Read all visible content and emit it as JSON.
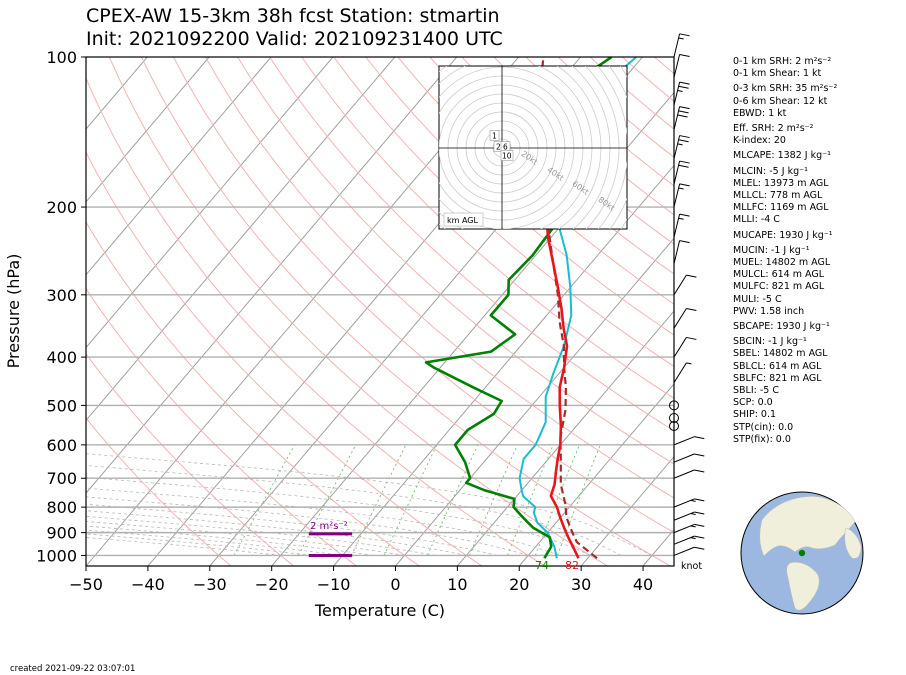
{
  "title_line1": "CPEX-AW 15-3km  38h fcst  Station: stmartin",
  "title_line2": "Init: 2021092200  Valid: 202109231400 UTC",
  "created": "created 2021-09-22 03:07:01",
  "colors": {
    "temperature": "#e8161c",
    "dewpoint": "#008000",
    "wetbulb": "#17becf",
    "parcel": "#a52a2a",
    "srh_bar": "#800080",
    "isobar": "#b0b0b0",
    "dry_adiabat": "#f4b3b3",
    "mixing_ratio": "#7cc47c"
  },
  "stats": [
    "0-1 km SRH: 2 m²s⁻²",
    "0-1 km Shear: 1 kt",
    "0-3 km SRH: 35 m²s⁻²",
    "0-6 km Shear: 12 kt",
    "EBWD: 1 kt",
    "Eff. SRH: 2 m²s⁻²",
    "K-index: 20",
    "MLCAPE: 1382 J kg⁻¹",
    "MLCIN: -5 J kg⁻¹",
    "MLEL: 13973 m AGL",
    "MLLCL: 778 m AGL",
    "MLLFC: 1169 m AGL",
    "MLLI: -4 C",
    "MUCAPE: 1930 J kg⁻¹",
    "MUCIN: -1 J kg⁻¹",
    "MUEL: 14802 m AGL",
    "MULCL: 614 m AGL",
    "MULFC: 821 m AGL",
    "MULI: -5 C",
    "PWV: 1.58 inch",
    "SBCAPE: 1930 J kg⁻¹",
    "SBCIN: -1 J kg⁻¹",
    "SBEL: 14802 m AGL",
    "SBLCL: 614 m AGL",
    "SBLFC: 821 m AGL",
    "SBLI: -5 C",
    "SCP: 0.0",
    "SHIP: 0.1",
    "STP(cin): 0.0",
    "STP(fix): 0.0"
  ],
  "chart_data": {
    "type": "line",
    "xlabel": "Temperature (C)",
    "ylabel": "Pressure (hPa)",
    "xlim": [
      -50,
      45
    ],
    "ylim": [
      1050,
      100
    ],
    "y_scale": "log",
    "x_ticks": [
      -50,
      -40,
      -30,
      -20,
      -10,
      0,
      10,
      20,
      30,
      40
    ],
    "x_tick_labels": [
      "−50",
      "−40",
      "−30",
      "−20",
      "−10",
      "0",
      "10",
      "20",
      "30",
      "40"
    ],
    "y_ticks": [
      100,
      200,
      300,
      400,
      500,
      600,
      700,
      800,
      900,
      1000
    ],
    "isobars": [
      200,
      300,
      400,
      500,
      600,
      700,
      800,
      900,
      1000
    ],
    "grid": true,
    "surface_temp_label": "82",
    "surface_dewpoint_label": "74",
    "srh_label": "2 m²s⁻²",
    "wind_unit_label": "knot",
    "hodograph_label": "km AGL",
    "hodograph_height_labels": [
      "1",
      "2",
      "6",
      "10"
    ],
    "hodograph_ring_labels": [
      "20kt",
      "40kt",
      "60kt",
      "80kt"
    ],
    "series": [
      {
        "name": "temperature",
        "points": [
          [
            28.5,
            1013
          ],
          [
            26,
            960
          ],
          [
            24,
            920
          ],
          [
            22,
            880
          ],
          [
            20,
            840
          ],
          [
            18,
            800
          ],
          [
            15.5,
            760
          ],
          [
            14.5,
            720
          ],
          [
            13,
            680
          ],
          [
            11.5,
            640
          ],
          [
            10,
            600
          ],
          [
            7.5,
            550
          ],
          [
            4.5,
            500
          ],
          [
            2,
            460
          ],
          [
            0,
            420
          ],
          [
            -2.5,
            380
          ],
          [
            -5.5,
            350
          ],
          [
            -8.5,
            320
          ],
          [
            -12,
            290
          ],
          [
            -16,
            260
          ],
          [
            -20.5,
            230
          ],
          [
            -25,
            200
          ],
          [
            -30,
            170
          ],
          [
            -33,
            150
          ],
          [
            -35,
            140
          ]
        ]
      },
      {
        "name": "dewpoint",
        "points": [
          [
            23,
            1013
          ],
          [
            22.5,
            960
          ],
          [
            21,
            920
          ],
          [
            17,
            880
          ],
          [
            14,
            840
          ],
          [
            11,
            800
          ],
          [
            10,
            770
          ],
          [
            4,
            740
          ],
          [
            0,
            715
          ],
          [
            0,
            700
          ],
          [
            -3,
            650
          ],
          [
            -7,
            600
          ],
          [
            -7,
            560
          ],
          [
            -5,
            520
          ],
          [
            -5.5,
            490
          ],
          [
            -12,
            460
          ],
          [
            -21,
            420
          ],
          [
            -23,
            410
          ],
          [
            -14,
            390
          ],
          [
            -12.5,
            360
          ],
          [
            -19,
            330
          ],
          [
            -19,
            300
          ],
          [
            -21,
            280
          ],
          [
            -20.5,
            250
          ],
          [
            -21,
            220
          ],
          [
            -26,
            200
          ],
          [
            -35,
            175
          ],
          [
            -34.5,
            150
          ],
          [
            -37,
            135
          ],
          [
            -36.5,
            120
          ],
          [
            -37,
            110
          ],
          [
            -35,
            100
          ]
        ]
      },
      {
        "name": "wetbulb",
        "points": [
          [
            25,
            1013
          ],
          [
            23,
            960
          ],
          [
            20,
            900
          ],
          [
            17,
            860
          ],
          [
            15,
            820
          ],
          [
            14.5,
            800
          ],
          [
            11,
            760
          ],
          [
            10,
            740
          ],
          [
            8,
            700
          ],
          [
            6,
            640
          ],
          [
            6,
            600
          ],
          [
            4.5,
            540
          ],
          [
            1,
            480
          ],
          [
            -1,
            430
          ],
          [
            -3,
            380
          ],
          [
            -6,
            330
          ],
          [
            -10,
            290
          ],
          [
            -15,
            250
          ],
          [
            -20,
            220
          ],
          [
            -25,
            190
          ],
          [
            -30,
            160
          ],
          [
            -32,
            140
          ],
          [
            -32,
            125
          ],
          [
            -32,
            110
          ],
          [
            -31,
            100
          ]
        ]
      },
      {
        "name": "parcel",
        "points": [
          [
            31.5,
            1013
          ],
          [
            26,
            940
          ],
          [
            24,
            900
          ],
          [
            21,
            840
          ],
          [
            19,
            790
          ],
          [
            15.5,
            720
          ],
          [
            12,
            640
          ],
          [
            9,
            580
          ],
          [
            6,
            510
          ],
          [
            3,
            460
          ],
          [
            0,
            420
          ],
          [
            -3,
            380
          ],
          [
            -7,
            340
          ],
          [
            -11,
            300
          ],
          [
            -16,
            260
          ],
          [
            -21,
            225
          ],
          [
            -26,
            195
          ],
          [
            -32,
            165
          ],
          [
            -37,
            140
          ],
          [
            -40,
            125
          ],
          [
            -43,
            112
          ],
          [
            -46,
            100
          ]
        ]
      }
    ],
    "srh_bars": [
      {
        "pressure": 905,
        "t_start": -14,
        "t_end": -7
      },
      {
        "pressure": 1000,
        "t_start": -14,
        "t_end": -7
      }
    ],
    "wind_barbs_kt": [
      {
        "p": 100,
        "speed": 15
      },
      {
        "p": 110,
        "speed": 10
      },
      {
        "p": 125,
        "speed": 25
      },
      {
        "p": 140,
        "speed": 30
      },
      {
        "p": 160,
        "speed": 25
      },
      {
        "p": 180,
        "speed": 20
      },
      {
        "p": 200,
        "speed": 15
      },
      {
        "p": 230,
        "speed": 15
      },
      {
        "p": 260,
        "speed": 10
      },
      {
        "p": 300,
        "speed": 10
      },
      {
        "p": 350,
        "speed": 10
      },
      {
        "p": 400,
        "speed": 10
      },
      {
        "p": 450,
        "speed": 5
      },
      {
        "p": 500,
        "speed": 0
      },
      {
        "p": 530,
        "speed": 0
      },
      {
        "p": 550,
        "speed": 0
      },
      {
        "p": 600,
        "speed": 10
      },
      {
        "p": 650,
        "speed": 10
      },
      {
        "p": 700,
        "speed": 10
      },
      {
        "p": 800,
        "speed": 15
      },
      {
        "p": 850,
        "speed": 15
      },
      {
        "p": 900,
        "speed": 15
      },
      {
        "p": 950,
        "speed": 15
      },
      {
        "p": 1000,
        "speed": 10
      }
    ]
  }
}
